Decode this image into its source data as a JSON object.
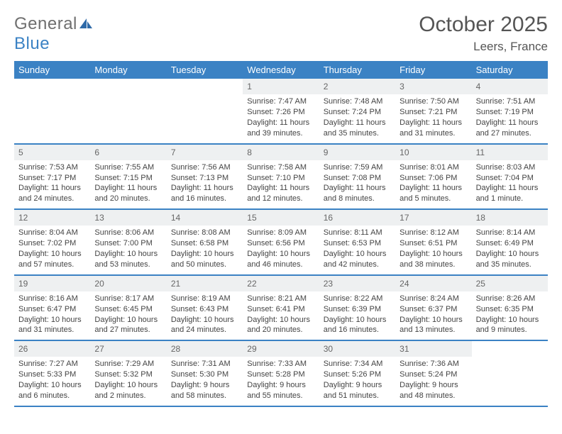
{
  "brand": {
    "name_part1": "General",
    "name_part2": "Blue",
    "logo_color": "#2f6aa8"
  },
  "title": {
    "month": "October 2025",
    "location": "Leers, France"
  },
  "colors": {
    "header_bg": "#3b82c4",
    "rule": "#3b82c4",
    "daynum_bg": "#eef0f1",
    "text": "#444444"
  },
  "weekdays": [
    "Sunday",
    "Monday",
    "Tuesday",
    "Wednesday",
    "Thursday",
    "Friday",
    "Saturday"
  ],
  "weeks": [
    [
      {
        "n": "",
        "sr": "",
        "ss": "",
        "dl": ""
      },
      {
        "n": "",
        "sr": "",
        "ss": "",
        "dl": ""
      },
      {
        "n": "",
        "sr": "",
        "ss": "",
        "dl": ""
      },
      {
        "n": "1",
        "sr": "Sunrise: 7:47 AM",
        "ss": "Sunset: 7:26 PM",
        "dl": "Daylight: 11 hours and 39 minutes."
      },
      {
        "n": "2",
        "sr": "Sunrise: 7:48 AM",
        "ss": "Sunset: 7:24 PM",
        "dl": "Daylight: 11 hours and 35 minutes."
      },
      {
        "n": "3",
        "sr": "Sunrise: 7:50 AM",
        "ss": "Sunset: 7:21 PM",
        "dl": "Daylight: 11 hours and 31 minutes."
      },
      {
        "n": "4",
        "sr": "Sunrise: 7:51 AM",
        "ss": "Sunset: 7:19 PM",
        "dl": "Daylight: 11 hours and 27 minutes."
      }
    ],
    [
      {
        "n": "5",
        "sr": "Sunrise: 7:53 AM",
        "ss": "Sunset: 7:17 PM",
        "dl": "Daylight: 11 hours and 24 minutes."
      },
      {
        "n": "6",
        "sr": "Sunrise: 7:55 AM",
        "ss": "Sunset: 7:15 PM",
        "dl": "Daylight: 11 hours and 20 minutes."
      },
      {
        "n": "7",
        "sr": "Sunrise: 7:56 AM",
        "ss": "Sunset: 7:13 PM",
        "dl": "Daylight: 11 hours and 16 minutes."
      },
      {
        "n": "8",
        "sr": "Sunrise: 7:58 AM",
        "ss": "Sunset: 7:10 PM",
        "dl": "Daylight: 11 hours and 12 minutes."
      },
      {
        "n": "9",
        "sr": "Sunrise: 7:59 AM",
        "ss": "Sunset: 7:08 PM",
        "dl": "Daylight: 11 hours and 8 minutes."
      },
      {
        "n": "10",
        "sr": "Sunrise: 8:01 AM",
        "ss": "Sunset: 7:06 PM",
        "dl": "Daylight: 11 hours and 5 minutes."
      },
      {
        "n": "11",
        "sr": "Sunrise: 8:03 AM",
        "ss": "Sunset: 7:04 PM",
        "dl": "Daylight: 11 hours and 1 minute."
      }
    ],
    [
      {
        "n": "12",
        "sr": "Sunrise: 8:04 AM",
        "ss": "Sunset: 7:02 PM",
        "dl": "Daylight: 10 hours and 57 minutes."
      },
      {
        "n": "13",
        "sr": "Sunrise: 8:06 AM",
        "ss": "Sunset: 7:00 PM",
        "dl": "Daylight: 10 hours and 53 minutes."
      },
      {
        "n": "14",
        "sr": "Sunrise: 8:08 AM",
        "ss": "Sunset: 6:58 PM",
        "dl": "Daylight: 10 hours and 50 minutes."
      },
      {
        "n": "15",
        "sr": "Sunrise: 8:09 AM",
        "ss": "Sunset: 6:56 PM",
        "dl": "Daylight: 10 hours and 46 minutes."
      },
      {
        "n": "16",
        "sr": "Sunrise: 8:11 AM",
        "ss": "Sunset: 6:53 PM",
        "dl": "Daylight: 10 hours and 42 minutes."
      },
      {
        "n": "17",
        "sr": "Sunrise: 8:12 AM",
        "ss": "Sunset: 6:51 PM",
        "dl": "Daylight: 10 hours and 38 minutes."
      },
      {
        "n": "18",
        "sr": "Sunrise: 8:14 AM",
        "ss": "Sunset: 6:49 PM",
        "dl": "Daylight: 10 hours and 35 minutes."
      }
    ],
    [
      {
        "n": "19",
        "sr": "Sunrise: 8:16 AM",
        "ss": "Sunset: 6:47 PM",
        "dl": "Daylight: 10 hours and 31 minutes."
      },
      {
        "n": "20",
        "sr": "Sunrise: 8:17 AM",
        "ss": "Sunset: 6:45 PM",
        "dl": "Daylight: 10 hours and 27 minutes."
      },
      {
        "n": "21",
        "sr": "Sunrise: 8:19 AM",
        "ss": "Sunset: 6:43 PM",
        "dl": "Daylight: 10 hours and 24 minutes."
      },
      {
        "n": "22",
        "sr": "Sunrise: 8:21 AM",
        "ss": "Sunset: 6:41 PM",
        "dl": "Daylight: 10 hours and 20 minutes."
      },
      {
        "n": "23",
        "sr": "Sunrise: 8:22 AM",
        "ss": "Sunset: 6:39 PM",
        "dl": "Daylight: 10 hours and 16 minutes."
      },
      {
        "n": "24",
        "sr": "Sunrise: 8:24 AM",
        "ss": "Sunset: 6:37 PM",
        "dl": "Daylight: 10 hours and 13 minutes."
      },
      {
        "n": "25",
        "sr": "Sunrise: 8:26 AM",
        "ss": "Sunset: 6:35 PM",
        "dl": "Daylight: 10 hours and 9 minutes."
      }
    ],
    [
      {
        "n": "26",
        "sr": "Sunrise: 7:27 AM",
        "ss": "Sunset: 5:33 PM",
        "dl": "Daylight: 10 hours and 6 minutes."
      },
      {
        "n": "27",
        "sr": "Sunrise: 7:29 AM",
        "ss": "Sunset: 5:32 PM",
        "dl": "Daylight: 10 hours and 2 minutes."
      },
      {
        "n": "28",
        "sr": "Sunrise: 7:31 AM",
        "ss": "Sunset: 5:30 PM",
        "dl": "Daylight: 9 hours and 58 minutes."
      },
      {
        "n": "29",
        "sr": "Sunrise: 7:33 AM",
        "ss": "Sunset: 5:28 PM",
        "dl": "Daylight: 9 hours and 55 minutes."
      },
      {
        "n": "30",
        "sr": "Sunrise: 7:34 AM",
        "ss": "Sunset: 5:26 PM",
        "dl": "Daylight: 9 hours and 51 minutes."
      },
      {
        "n": "31",
        "sr": "Sunrise: 7:36 AM",
        "ss": "Sunset: 5:24 PM",
        "dl": "Daylight: 9 hours and 48 minutes."
      },
      {
        "n": "",
        "sr": "",
        "ss": "",
        "dl": ""
      }
    ]
  ]
}
